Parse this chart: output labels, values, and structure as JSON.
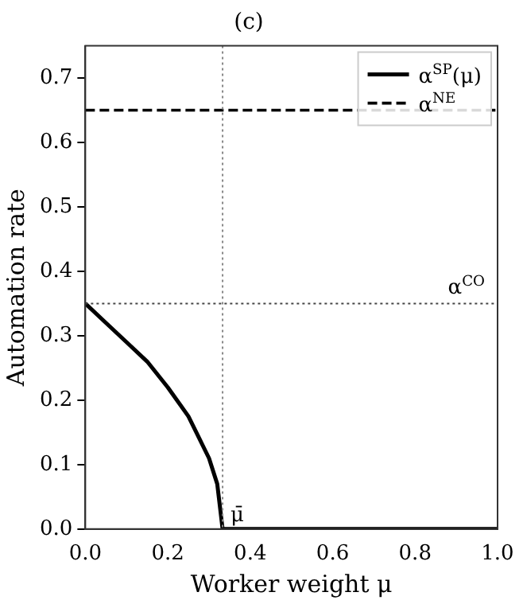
{
  "chart_data": {
    "type": "line",
    "title": "(c)",
    "xlabel": "Worker weight μ",
    "ylabel": "Automation rate",
    "xlim": [
      0,
      1
    ],
    "xticks": [
      {
        "value": 0,
        "label": "0.0"
      },
      0.2,
      0.4,
      0.6,
      0.8,
      {
        "value": 1,
        "label": "1.0"
      }
    ],
    "ylim": [
      0,
      0.75
    ],
    "yticks": [
      {
        "value": 0,
        "label": "0.0"
      },
      0.1,
      0.2,
      0.3,
      0.4,
      0.5,
      0.6,
      0.7
    ],
    "series": [
      {
        "name": "α$^{SP}$(μ)",
        "color": "#000000",
        "line_style": "solid",
        "x": [
          0,
          0.05,
          0.1,
          0.15,
          0.2,
          0.25,
          0.3,
          0.32,
          0.333,
          0.5,
          1
        ],
        "values": [
          0.35,
          0.32,
          0.29,
          0.26,
          0.22,
          0.175,
          0.11,
          0.07,
          0,
          0,
          0
        ]
      },
      {
        "name": "α$^{NE}$",
        "color": "#000000",
        "line_style": "dashed",
        "x": [
          0,
          1
        ],
        "values": [
          0.65,
          0.65
        ]
      }
    ],
    "ref_lines": [
      {
        "axis": "x",
        "value": 0.333,
        "label": "μ̄",
        "color": "#888888",
        "line_style": "dotted"
      },
      {
        "axis": "y",
        "value": 0.35,
        "label": "α$^{CO}$",
        "color": "#444444",
        "line_style": "dotted"
      }
    ],
    "legend": "top right",
    "grid": false,
    "marker": "none"
  }
}
